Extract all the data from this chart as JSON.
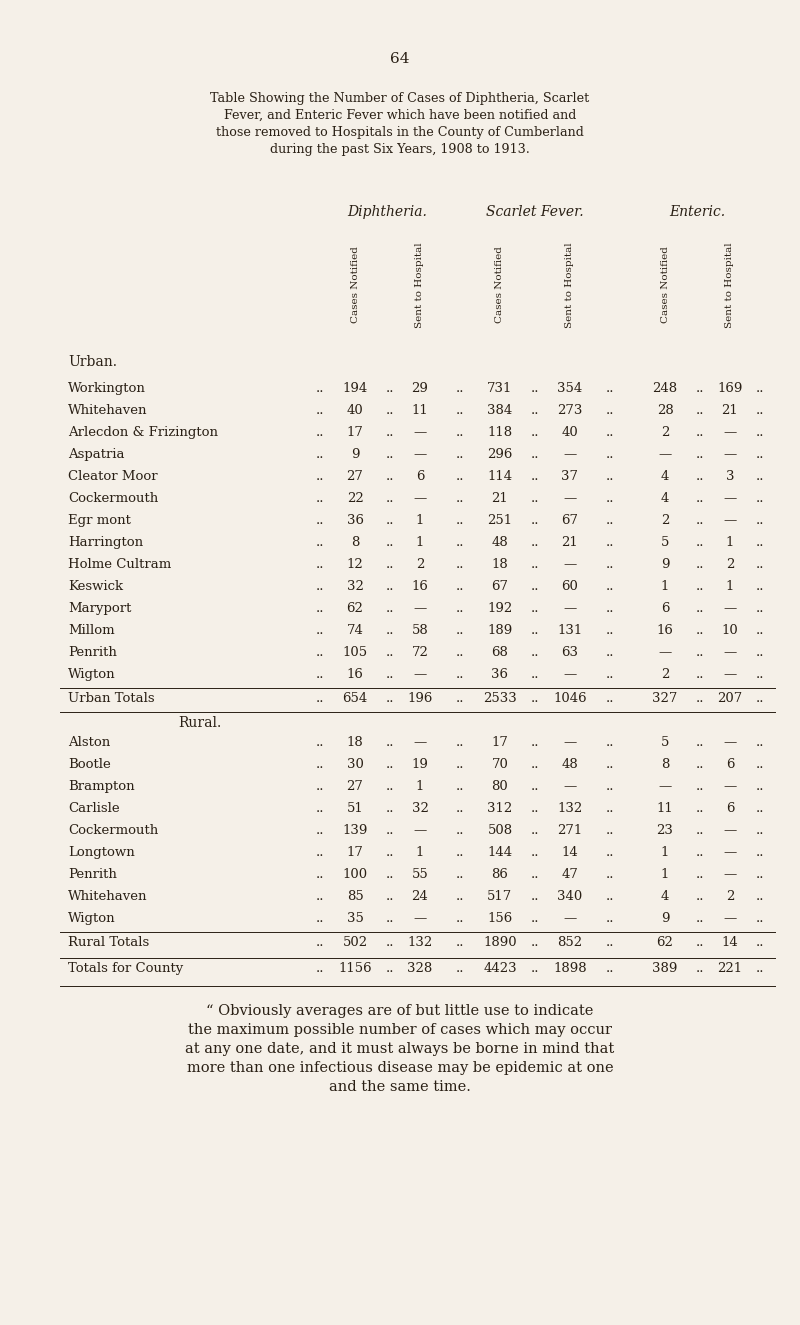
{
  "page_number": "64",
  "title_lines": [
    "Table Showing the Number of Cases of Diphtheria, Scarlet",
    "Fever, and Enteric Fever which have been notified and",
    "those removed to Hospitals in the County of Cumberland",
    "during the past Six Years, 1908 to 1913."
  ],
  "col_groups": [
    "Diphtheria.",
    "Scarlet Fever.",
    "Enteric."
  ],
  "col_headers": [
    "Cases Notified",
    "Sent to Hospital",
    "Cases Notified",
    "Sent to Hospital",
    "Cases Notified",
    "Sent to Hospital"
  ],
  "urban_rows": [
    [
      "Workington",
      "194",
      "29",
      "731",
      "354",
      "248",
      "169"
    ],
    [
      "Whitehaven",
      "40",
      "11",
      "384",
      "273",
      "28",
      "21"
    ],
    [
      "Arlecdon & Frizington",
      "17",
      "—",
      "118",
      "40",
      "2",
      "—"
    ],
    [
      "Aspatria",
      "9",
      "—",
      "296",
      "—",
      "—",
      "—"
    ],
    [
      "Cleator Moor",
      "27",
      "6",
      "114",
      "37",
      "4",
      "3"
    ],
    [
      "Cockermouth",
      "22",
      "—",
      "21",
      "—",
      "4",
      "—"
    ],
    [
      "Egr mont",
      "36",
      "1",
      "251",
      "67",
      "2",
      "—"
    ],
    [
      "Harrington",
      "8",
      "1",
      "48",
      "21",
      "5",
      "1"
    ],
    [
      "Holme Cultram",
      "12",
      "2",
      "18",
      "—",
      "9",
      "2"
    ],
    [
      "Keswick",
      "32",
      "16",
      "67",
      "60",
      "1",
      "1"
    ],
    [
      "Maryport",
      "62",
      "—",
      "192",
      "—",
      "6",
      "—"
    ],
    [
      "Millom",
      "74",
      "58",
      "189",
      "131",
      "16",
      "10"
    ],
    [
      "Penrith",
      "105",
      "72",
      "68",
      "63",
      "—",
      "—"
    ],
    [
      "Wigton",
      "16",
      "—",
      "36",
      "—",
      "2",
      "—"
    ]
  ],
  "urban_totals": [
    "Urban Totals",
    "654",
    "196",
    "2533",
    "1046",
    "327",
    "207"
  ],
  "rural_rows": [
    [
      "Alston",
      "18",
      "—",
      "17",
      "—",
      "5",
      "—"
    ],
    [
      "Bootle",
      "30",
      "19",
      "70",
      "48",
      "8",
      "6"
    ],
    [
      "Brampton",
      "27",
      "1",
      "80",
      "—",
      "—",
      "—"
    ],
    [
      "Carlisle",
      "51",
      "32",
      "312",
      "132",
      "11",
      "6"
    ],
    [
      "Cockermouth",
      "139",
      "—",
      "508",
      "271",
      "23",
      "—"
    ],
    [
      "Longtown",
      "17",
      "1",
      "144",
      "14",
      "1",
      "—"
    ],
    [
      "Penrith",
      "100",
      "55",
      "86",
      "47",
      "1",
      "—"
    ],
    [
      "Whitehaven",
      "85",
      "24",
      "517",
      "340",
      "4",
      "2"
    ],
    [
      "Wigton",
      "35",
      "—",
      "156",
      "—",
      "9",
      "—"
    ]
  ],
  "rural_totals": [
    "Rural Totals",
    "502",
    "132",
    "1890",
    "852",
    "62",
    "14"
  ],
  "county_totals": [
    "Totals for County",
    "1156",
    "328",
    "4423",
    "1898",
    "389",
    "221"
  ],
  "footer_lines": [
    "“ Obviously averages are of but little use to indicate",
    "the maximum possible number of cases which may occur",
    "at any one date, and it must always be borne in mind that",
    "more than one infectious disease may be epidemic at one",
    "and the same time."
  ],
  "bg_color": "#f5f0e8",
  "text_color": "#2a2015"
}
